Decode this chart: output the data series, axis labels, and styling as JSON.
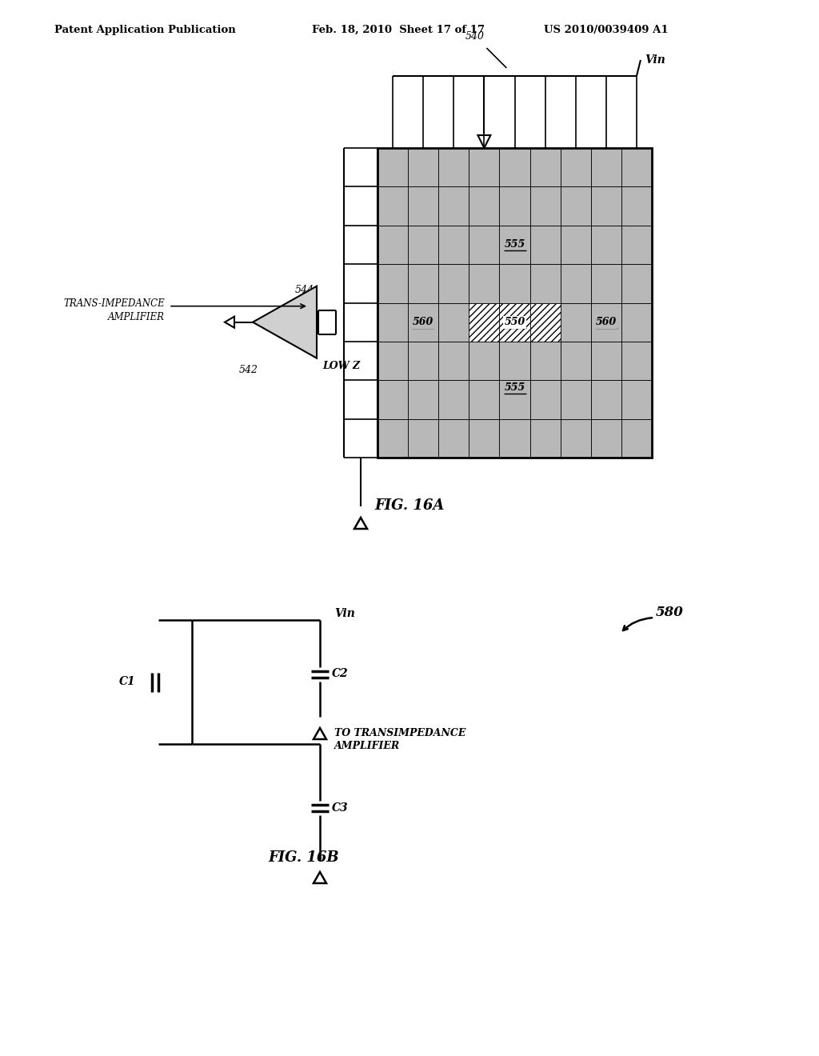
{
  "bg_color": "#ffffff",
  "header_left": "Patent Application Publication",
  "header_mid": "Feb. 18, 2010  Sheet 17 of 17",
  "header_right": "US 2010/0039409 A1",
  "fig16a_caption": "FIG. 16A",
  "fig16b_caption": "FIG. 16B",
  "label_540": "540",
  "label_Vin_top": "Vin",
  "label_544": "544",
  "label_542": "542",
  "label_trans_imp": "TRANS-IMPEDANCE\nAMPLIFIER",
  "label_low_z": "LOW Z",
  "label_555_top": "555",
  "label_555_bot": "555",
  "label_550": "550",
  "label_560_left": "560",
  "label_560_right": "560",
  "label_Vin_b": "Vin",
  "label_580": "580",
  "label_C1": "C1",
  "label_C2": "C2",
  "label_C3": "C3",
  "label_to_trans": "TO TRANSIMPEDANCE\nAMPLIFIER"
}
